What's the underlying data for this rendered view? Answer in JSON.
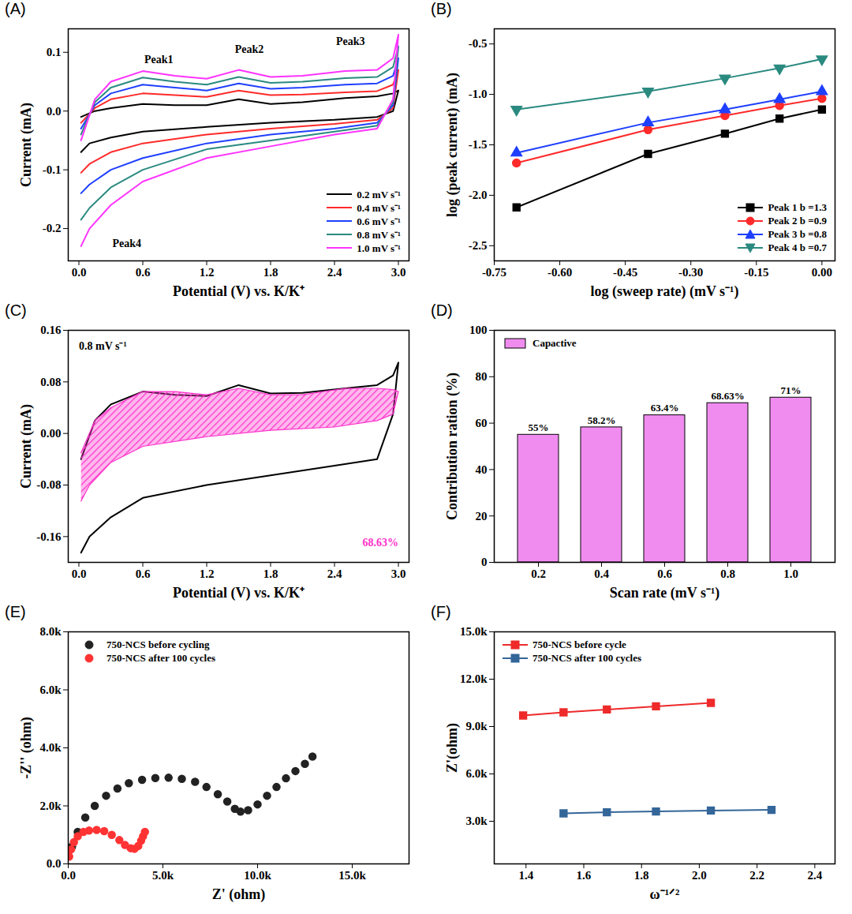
{
  "chart_data": [
    {
      "title": "(A)",
      "type": "line",
      "xlabel": "Potential (V) vs. K/K⁺",
      "ylabel": "Current (mA)",
      "xlim": [
        -0.1,
        3.1
      ],
      "xticks": [
        {
          "value": 0,
          "label": "0.0"
        },
        0.6,
        1.2,
        1.8,
        2.4,
        {
          "value": 3,
          "label": "3.0"
        }
      ],
      "ylim": [
        -0.255,
        0.14
      ],
      "yticks": [
        -0.2,
        -0.1,
        {
          "value": 0,
          "label": "0.0"
        },
        0.1
      ],
      "legend": "lower right",
      "x": [
        0.02,
        0.15,
        0.3,
        0.6,
        0.9,
        1.2,
        1.5,
        1.8,
        2.1,
        2.5,
        2.8,
        2.95,
        3.0,
        2.95,
        2.8,
        2.4,
        1.8,
        1.2,
        0.6,
        0.3,
        0.1,
        0.02
      ],
      "series": [
        {
          "name": "0.2 mV s⁻¹",
          "color": "#000000",
          "values": [
            -0.01,
            0.0,
            0.005,
            0.012,
            0.01,
            0.01,
            0.02,
            0.012,
            0.015,
            0.022,
            0.025,
            0.03,
            0.035,
            0.0,
            -0.01,
            -0.015,
            -0.02,
            -0.027,
            -0.035,
            -0.045,
            -0.055,
            -0.07
          ]
        },
        {
          "name": "0.4 mV s⁻¹",
          "color": "#ff2a2a",
          "values": [
            -0.02,
            0.005,
            0.02,
            0.03,
            0.027,
            0.024,
            0.035,
            0.027,
            0.028,
            0.032,
            0.034,
            0.045,
            0.07,
            0.005,
            -0.015,
            -0.022,
            -0.03,
            -0.04,
            -0.055,
            -0.07,
            -0.09,
            -0.105
          ]
        },
        {
          "name": "0.6 mV s⁻¹",
          "color": "#1f3fff",
          "values": [
            -0.03,
            0.01,
            0.03,
            0.045,
            0.04,
            0.035,
            0.047,
            0.038,
            0.04,
            0.045,
            0.047,
            0.06,
            0.09,
            0.01,
            -0.02,
            -0.03,
            -0.04,
            -0.055,
            -0.08,
            -0.1,
            -0.125,
            -0.14
          ]
        },
        {
          "name": "0.8 mV s⁻¹",
          "color": "#2a8a80",
          "values": [
            -0.04,
            0.015,
            0.04,
            0.057,
            0.05,
            0.045,
            0.058,
            0.048,
            0.05,
            0.056,
            0.058,
            0.075,
            0.11,
            0.015,
            -0.025,
            -0.035,
            -0.05,
            -0.065,
            -0.1,
            -0.13,
            -0.165,
            -0.185
          ]
        },
        {
          "name": "1.0 mV s⁻¹",
          "color": "#ff33ff",
          "values": [
            -0.05,
            0.02,
            0.05,
            0.068,
            0.06,
            0.055,
            0.07,
            0.058,
            0.06,
            0.068,
            0.07,
            0.09,
            0.13,
            0.02,
            -0.03,
            -0.04,
            -0.06,
            -0.08,
            -0.12,
            -0.16,
            -0.2,
            -0.23
          ]
        }
      ],
      "annotations": [
        {
          "text": "Peak1",
          "x": 0.75,
          "y": 0.088
        },
        {
          "text": "Peak2",
          "x": 1.6,
          "y": 0.105
        },
        {
          "text": "Peak3",
          "x": 2.55,
          "y": 0.118
        },
        {
          "text": "Peak4",
          "x": 0.45,
          "y": -0.225
        }
      ]
    },
    {
      "title": "(B)",
      "type": "line",
      "xlabel": "log (sweep rate) (mV s⁻¹)",
      "ylabel": "log (peak current) (mA)",
      "xlim": [
        -0.75,
        0.03
      ],
      "xticks": [
        -0.75,
        {
          "value": -0.6,
          "label": "-0.60"
        },
        -0.45,
        {
          "value": -0.3,
          "label": "-0.30"
        },
        -0.15,
        {
          "value": 0,
          "label": "0.00"
        }
      ],
      "ylim": [
        -2.65,
        -0.35
      ],
      "yticks": [
        -2.5,
        {
          "value": -2,
          "label": "-2.0"
        },
        -1.5,
        {
          "value": -1,
          "label": "-1.0"
        },
        -0.5
      ],
      "legend": "lower right",
      "x": [
        -0.699,
        -0.398,
        -0.222,
        -0.097,
        0
      ],
      "series": [
        {
          "name": "Peak 1 b =1.3",
          "color": "#000000",
          "marker": "square",
          "values": [
            -2.12,
            -1.59,
            -1.39,
            -1.24,
            -1.15
          ]
        },
        {
          "name": "Peak 2 b =0.9",
          "color": "#ff2a2a",
          "marker": "circle",
          "values": [
            -1.68,
            -1.35,
            -1.21,
            -1.11,
            -1.04
          ]
        },
        {
          "name": "Peak 3 b =0.8",
          "color": "#1f3fff",
          "marker": "triangle",
          "values": [
            -1.58,
            -1.28,
            -1.15,
            -1.05,
            -0.97
          ]
        },
        {
          "name": "Peak 4 b =0.7",
          "color": "#2a8a80",
          "marker": "triangle_down",
          "values": [
            -1.15,
            -0.97,
            -0.84,
            -0.74,
            -0.65
          ]
        }
      ]
    },
    {
      "title": "(C)",
      "type": "line",
      "xlabel": "Potential (V) vs. K/K⁺",
      "ylabel": "Current (mA)",
      "xlim": [
        -0.1,
        3.1
      ],
      "xticks": [
        {
          "value": 0,
          "label": "0.0"
        },
        0.6,
        1.2,
        1.8,
        2.4,
        {
          "value": 3,
          "label": "3.0"
        }
      ],
      "ylim": [
        -0.2,
        0.16
      ],
      "yticks": [
        -0.16,
        -0.08,
        {
          "value": 0,
          "label": "0.00"
        },
        0.08,
        0.16
      ],
      "x": [
        0.02,
        0.15,
        0.3,
        0.6,
        0.9,
        1.2,
        1.5,
        1.8,
        2.1,
        2.5,
        2.8,
        2.95,
        3.0,
        2.95,
        2.8,
        2.4,
        1.8,
        1.2,
        0.6,
        0.3,
        0.1,
        0.02
      ],
      "series": [
        {
          "type": "line",
          "color": "#000000",
          "values": [
            -0.04,
            0.02,
            0.045,
            0.065,
            0.06,
            0.058,
            0.075,
            0.062,
            0.063,
            0.07,
            0.075,
            0.09,
            0.11,
            0.03,
            -0.04,
            -0.05,
            -0.065,
            -0.08,
            -0.1,
            -0.13,
            -0.16,
            -0.185
          ]
        },
        {
          "type": "area",
          "color": "#ff33cc",
          "values": [
            -0.03,
            0.02,
            0.04,
            0.065,
            0.065,
            0.06,
            0.07,
            0.06,
            0.06,
            0.07,
            0.07,
            0.068,
            0.065,
            0.03,
            0.02,
            0.01,
            0.005,
            -0.005,
            -0.02,
            -0.045,
            -0.08,
            -0.105
          ]
        }
      ],
      "annotations": [
        {
          "text": "0.8 mV s⁻¹",
          "x": 0.0,
          "y": 0.135
        },
        {
          "text": "68.63%",
          "x": 3.0,
          "y": -0.17,
          "color": "#ff33cc"
        }
      ]
    },
    {
      "title": "(D)",
      "type": "bar",
      "xlabel": "Scan rate (mV s⁻¹)",
      "ylabel": "Contribution ration (%)",
      "categories": [
        "0.2",
        "0.4",
        "0.6",
        "0.8",
        "1.0"
      ],
      "ylim": [
        0,
        100
      ],
      "yticks": [
        0,
        20,
        40,
        60,
        80,
        100
      ],
      "legend": "upper left",
      "data_labels": true,
      "series": [
        {
          "name": "Capactive",
          "color": "#f08cf0",
          "values": [
            55,
            58.2,
            63.4,
            68.63,
            71
          ],
          "value_labels": [
            "55%",
            "58.2%",
            "63.4%",
            "68.63%",
            "71%"
          ]
        }
      ]
    },
    {
      "title": "(E)",
      "type": "scatter",
      "xlabel": "Z' (ohm)",
      "ylabel": "-Z'' (ohm)",
      "xlim": [
        0,
        18000
      ],
      "xticks": [
        {
          "value": 0,
          "label": "0.0"
        },
        {
          "value": 5000,
          "label": "5.0k"
        },
        {
          "value": 10000,
          "label": "10.0k"
        },
        {
          "value": 15000,
          "label": "15.0k"
        }
      ],
      "ylim": [
        0,
        8000
      ],
      "yticks": [
        {
          "value": 0,
          "label": "0.0"
        },
        {
          "value": 2000,
          "label": "2.0k"
        },
        {
          "value": 4000,
          "label": "4.0k"
        },
        {
          "value": 6000,
          "label": "6.0k"
        },
        {
          "value": 8000,
          "label": "8.0k"
        }
      ],
      "legend": "upper left",
      "marker": "circle",
      "series": [
        {
          "name": "750-NCS before cycling",
          "color": "#222222",
          "x": [
            200,
            500,
            900,
            1400,
            2000,
            2600,
            3200,
            3900,
            4600,
            5300,
            6000,
            6700,
            7300,
            7900,
            8400,
            8800,
            9100,
            9500,
            10000,
            10500,
            11000,
            11500,
            12000,
            12500,
            12900
          ],
          "values": [
            600,
            1100,
            1600,
            2000,
            2350,
            2600,
            2780,
            2900,
            2960,
            2970,
            2930,
            2830,
            2650,
            2400,
            2150,
            1900,
            1800,
            1850,
            2050,
            2350,
            2650,
            2950,
            3200,
            3450,
            3700
          ]
        },
        {
          "name": "750-NCS after 100 cycles",
          "color": "#ff3333",
          "x": [
            50,
            150,
            300,
            500,
            800,
            1100,
            1500,
            1900,
            2300,
            2700,
            3000,
            3300,
            3500,
            3700,
            3850,
            3950,
            4050
          ],
          "values": [
            250,
            500,
            750,
            950,
            1100,
            1150,
            1170,
            1130,
            1000,
            820,
            650,
            540,
            520,
            620,
            800,
            950,
            1100
          ]
        }
      ]
    },
    {
      "title": "(F)",
      "type": "line",
      "xlabel": "ω⁻¹ᐟ²",
      "ylabel": "Z'(ohm)",
      "xlim": [
        1.29,
        2.47
      ],
      "xticks": [
        1.4,
        1.6,
        1.8,
        {
          "value": 2,
          "label": "2.0"
        },
        2.2,
        2.4
      ],
      "ylim": [
        300,
        15000
      ],
      "yticks": [
        {
          "value": 3000,
          "label": "3.0k"
        },
        {
          "value": 6000,
          "label": "6.0k"
        },
        {
          "value": 9000,
          "label": "9.0k"
        },
        {
          "value": 12000,
          "label": "12.0k"
        },
        {
          "value": 15000,
          "label": "15.0k"
        }
      ],
      "legend": "upper left",
      "marker": "square",
      "series": [
        {
          "name": "750-NCS before cycle",
          "color": "#ee2a2a",
          "x": [
            1.39,
            1.53,
            1.68,
            1.85,
            2.04
          ],
          "values": [
            9700,
            9900,
            10080,
            10280,
            10500
          ]
        },
        {
          "name": "750-NCS after 100 cycles",
          "color": "#336699",
          "x": [
            1.53,
            1.68,
            1.85,
            2.04,
            2.25
          ],
          "values": [
            3500,
            3570,
            3620,
            3680,
            3720
          ]
        }
      ]
    }
  ]
}
